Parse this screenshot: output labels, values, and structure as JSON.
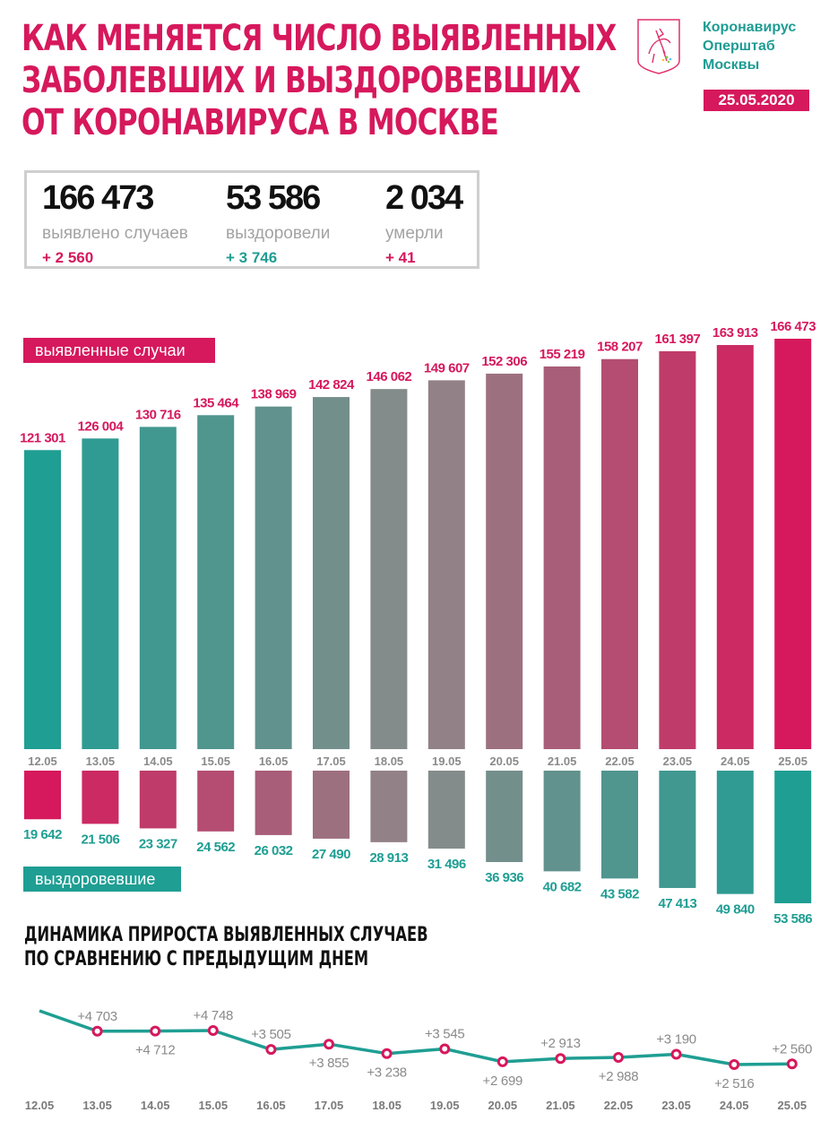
{
  "header": {
    "title_lines": [
      "КАК МЕНЯЕТСЯ ЧИСЛО ВЫЯВЛЕННЫХ",
      "ЗАБОЛЕВШИХ И ВЫЗДОРОВЕВШИХ",
      "ОТ КОРОНАВИРУСА В МОСКВЕ"
    ],
    "brand_lines": [
      "Коронавирус",
      "Оперштаб",
      "Москвы"
    ],
    "logo_icon": "moscow-coat-of-arms-icon",
    "date": "25.05.2020"
  },
  "summary": {
    "cases": {
      "value": "166 473",
      "label": "выявлено случаев",
      "delta": "+ 2 560"
    },
    "recovered": {
      "value": "53 586",
      "label": "выздоровели",
      "delta": "+ 3 746"
    },
    "deaths": {
      "value": "2 034",
      "label": "умерли",
      "delta": "+ 41"
    }
  },
  "colors": {
    "accent_pink": "#d6185c",
    "accent_teal": "#1f9e93",
    "neutral_gray": "#8a8a8a"
  },
  "legend": {
    "cases_label": "выявленные случаи",
    "recovered_label": "выздоровевшие"
  },
  "section2": {
    "title_lines": [
      "ДИНАМИКА ПРИРОСТА ВЫЯВЛЕННЫХ СЛУЧАЕВ",
      "ПО СРАВНЕНИЮ С ПРЕДЫДУЩИМ ДНЕМ"
    ]
  },
  "chart_data": [
    {
      "type": "bar",
      "title": "выявленные случаи",
      "categories": [
        "12.05",
        "13.05",
        "14.05",
        "15.05",
        "16.05",
        "17.05",
        "18.05",
        "19.05",
        "20.05",
        "21.05",
        "22.05",
        "23.05",
        "24.05",
        "25.05"
      ],
      "values": [
        121301,
        126004,
        130716,
        135464,
        138969,
        142824,
        146062,
        149607,
        152306,
        155219,
        158207,
        161397,
        163913,
        166473
      ],
      "labels": [
        "121 301",
        "126 004",
        "130 716",
        "135 464",
        "138 969",
        "142 824",
        "146 062",
        "149 607",
        "152 306",
        "155 219",
        "158 207",
        "161 397",
        "163 913",
        "166 473"
      ],
      "xlabel": "",
      "ylabel": "",
      "grid": false
    },
    {
      "type": "bar",
      "title": "выздоровевшие",
      "orientation": "downward",
      "categories": [
        "12.05",
        "13.05",
        "14.05",
        "15.05",
        "16.05",
        "17.05",
        "18.05",
        "19.05",
        "20.05",
        "21.05",
        "22.05",
        "23.05",
        "24.05",
        "25.05"
      ],
      "values": [
        19642,
        21506,
        23327,
        24562,
        26032,
        27490,
        28913,
        31496,
        36936,
        40682,
        43582,
        47413,
        49840,
        53586
      ],
      "labels": [
        "19 642",
        "21 506",
        "23 327",
        "24 562",
        "26 032",
        "27 490",
        "28 913",
        "31 496",
        "36 936",
        "40 682",
        "43 582",
        "47 413",
        "49 840",
        "53 586"
      ],
      "grid": false
    },
    {
      "type": "line",
      "title": "ДИНАМИКА ПРИРОСТА ВЫЯВЛЕННЫХ СЛУЧАЕВ ПО СРАВНЕНИЮ С ПРЕДЫДУЩИМ ДНЕМ",
      "x": [
        "12.05",
        "13.05",
        "14.05",
        "15.05",
        "16.05",
        "17.05",
        "18.05",
        "19.05",
        "20.05",
        "21.05",
        "22.05",
        "23.05",
        "24.05",
        "25.05"
      ],
      "values": [
        null,
        4703,
        4712,
        4748,
        3505,
        3855,
        3238,
        3545,
        2699,
        2913,
        2988,
        3190,
        2516,
        2560
      ],
      "labels": [
        "",
        "+4 703",
        "+4 712",
        "+4 748",
        "+3 505",
        "+3 855",
        "+3 238",
        "+3 545",
        "+2 699",
        "+2 913",
        "+2 988",
        "+3 190",
        "+2 516",
        "+2 560"
      ],
      "label_positions": [
        "",
        "above",
        "below",
        "above",
        "above",
        "below",
        "below",
        "above",
        "below",
        "above",
        "below",
        "above",
        "below",
        "above"
      ],
      "first_segment_note": "line enters from left above 13.05 point (12.05 value not labeled)",
      "grid": false
    }
  ]
}
